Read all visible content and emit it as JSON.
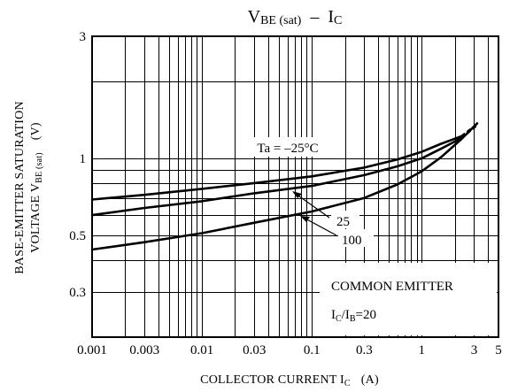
{
  "chart_data": {
    "type": "line",
    "title": {
      "main": "V",
      "main_sub": "BE (sat)",
      "sep": "–",
      "var": "I",
      "var_sub": "C"
    },
    "xlabel": {
      "text": "COLLECTOR CURRENT  I",
      "sub": "C",
      "unit": "(A)"
    },
    "ylabel": {
      "line1": "BASE-EMITTER SATURATION",
      "line2_a": "VOLTAGE  V",
      "line2_sub": "BE (sat)",
      "line2_unit": "(V)"
    },
    "x_scale": "log",
    "y_scale": "log",
    "xlim": [
      0.001,
      5
    ],
    "ylim": [
      0.2,
      3
    ],
    "grid": true,
    "x_ticks": [
      {
        "value": 0.001,
        "label": "0.001"
      },
      {
        "value": 0.003,
        "label": "0.003"
      },
      {
        "value": 0.01,
        "label": "0.01"
      },
      {
        "value": 0.03,
        "label": "0.03"
      },
      {
        "value": 0.1,
        "label": "0.1"
      },
      {
        "value": 0.3,
        "label": "0.3"
      },
      {
        "value": 1,
        "label": "1"
      },
      {
        "value": 3,
        "label": "3"
      },
      {
        "value": 5,
        "label": "5"
      }
    ],
    "y_ticks": [
      {
        "value": 0.3,
        "label": "0.3"
      },
      {
        "value": 0.5,
        "label": "0.5"
      },
      {
        "value": 1,
        "label": "1"
      },
      {
        "value": 3,
        "label": "3"
      }
    ],
    "series": [
      {
        "name": "Ta = –25°C",
        "x": [
          0.001,
          0.003,
          0.01,
          0.03,
          0.1,
          0.3,
          0.6,
          1,
          1.5,
          2.3
        ],
        "y": [
          0.69,
          0.72,
          0.76,
          0.8,
          0.85,
          0.92,
          0.99,
          1.06,
          1.14,
          1.22
        ],
        "dashed_to": {
          "x": 3.2,
          "y": 1.36
        }
      },
      {
        "name": "25",
        "x": [
          0.001,
          0.003,
          0.01,
          0.03,
          0.1,
          0.3,
          0.6,
          1,
          1.5,
          2.3
        ],
        "y": [
          0.6,
          0.64,
          0.68,
          0.73,
          0.78,
          0.86,
          0.93,
          1.0,
          1.09,
          1.2
        ],
        "dashed_to": {
          "x": 3.2,
          "y": 1.35
        }
      },
      {
        "name": "100",
        "x": [
          0.001,
          0.003,
          0.01,
          0.03,
          0.1,
          0.3,
          0.6,
          1,
          1.5,
          2.3,
          3.2
        ],
        "y": [
          0.44,
          0.47,
          0.51,
          0.56,
          0.62,
          0.7,
          0.79,
          0.89,
          1.01,
          1.19,
          1.37
        ]
      }
    ],
    "legend": {
      "line1": "COMMON EMITTER",
      "line2_a": "I",
      "line2_sub1": "C",
      "line2_b": "/I",
      "line2_sub2": "B",
      "line2_c": "=20",
      "position": "bottom-right"
    }
  }
}
